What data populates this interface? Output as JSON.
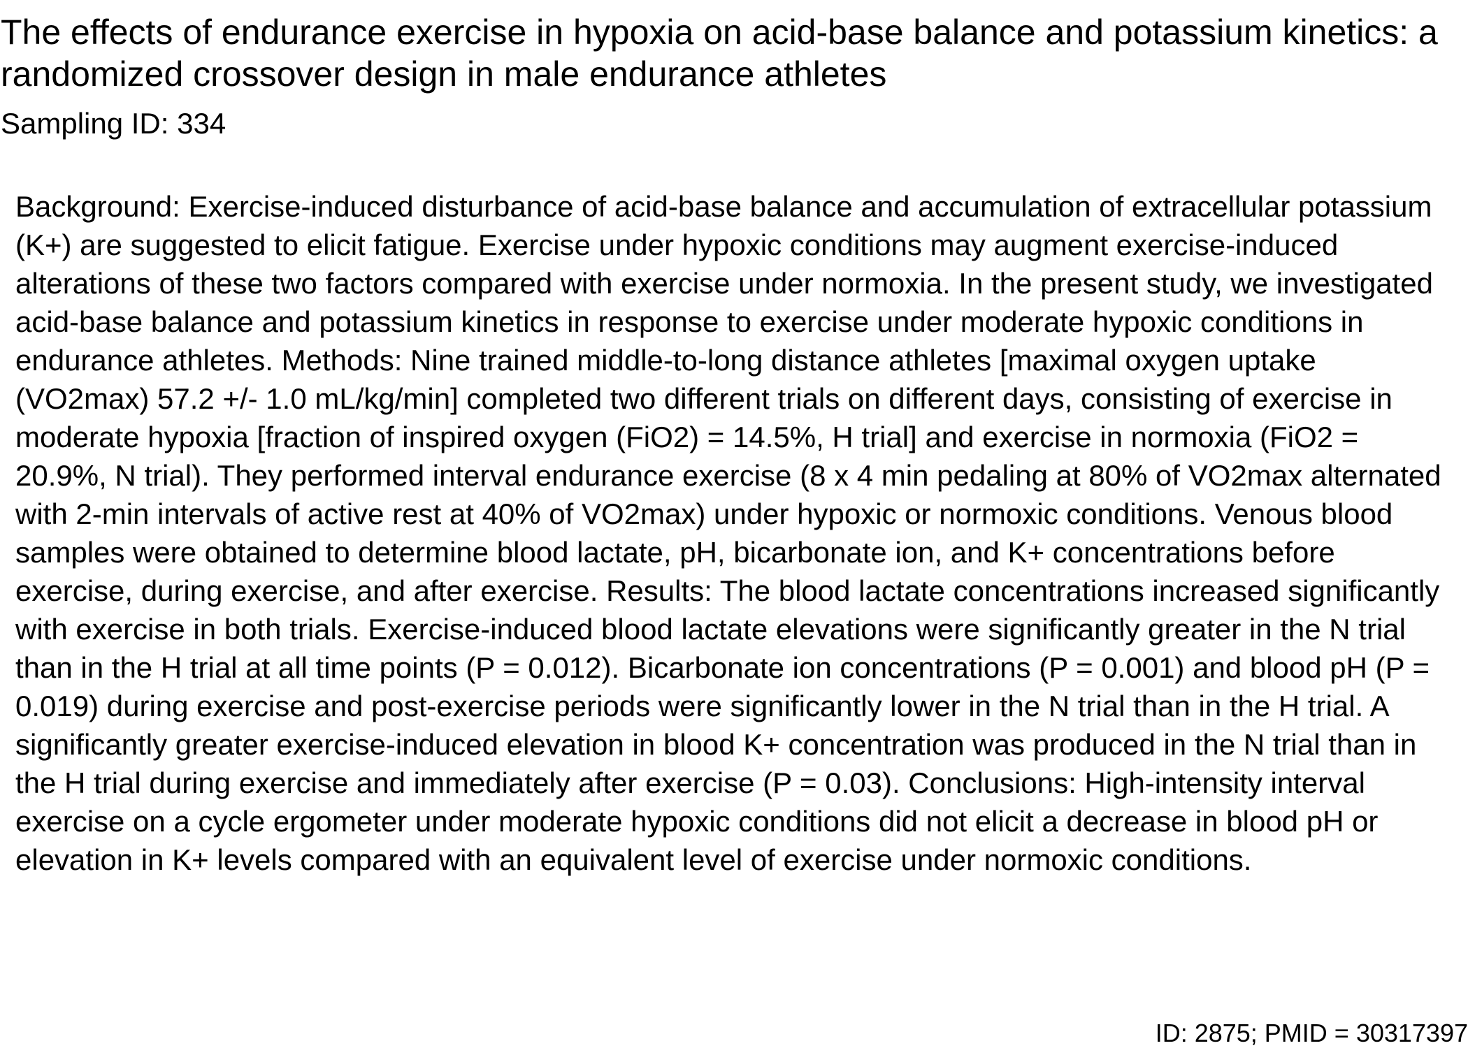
{
  "document": {
    "title": "The effects of endurance exercise in hypoxia on acid-base balance and potassium kinetics: a randomized crossover design in male endurance athletes",
    "sampling_id": "Sampling ID: 334",
    "abstract": "Background: Exercise-induced disturbance of acid-base balance and accumulation of extracellular potassium (K+) are suggested to elicit fatigue. Exercise under hypoxic conditions may augment exercise-induced alterations of these two factors compared with exercise under normoxia. In the present study, we investigated acid-base balance and potassium kinetics in response to exercise under moderate hypoxic conditions in endurance athletes. Methods: Nine trained middle-to-long distance athletes [maximal oxygen uptake (VO2max) 57.2 +/- 1.0 mL/kg/min] completed two different trials on different days, consisting of exercise in moderate hypoxia [fraction of inspired oxygen (FiO2) = 14.5%, H trial] and exercise in normoxia (FiO2 = 20.9%, N trial). They performed interval endurance exercise (8 x 4 min pedaling at 80% of VO2max alternated with 2-min intervals of active rest at 40% of VO2max) under hypoxic or normoxic conditions. Venous blood samples were obtained to determine blood lactate, pH, bicarbonate ion, and K+ concentrations before exercise, during exercise, and after exercise. Results: The blood lactate concentrations increased significantly with exercise in both trials. Exercise-induced blood lactate elevations were significantly greater in the N trial than in the H trial at all time points (P = 0.012). Bicarbonate ion concentrations (P = 0.001) and blood pH (P = 0.019) during exercise and post-exercise periods were significantly lower in the N trial than in the H trial. A significantly greater exercise-induced elevation in blood K+ concentration was produced in the N trial than in the H trial during exercise and immediately after exercise (P = 0.03). Conclusions: High-intensity interval exercise on a cycle ergometer under moderate hypoxic conditions did not elicit a decrease in blood pH or elevation in K+ levels compared with an equivalent level of exercise under normoxic conditions.",
    "footer_id": "ID: 2875; PMID = 30317397"
  }
}
